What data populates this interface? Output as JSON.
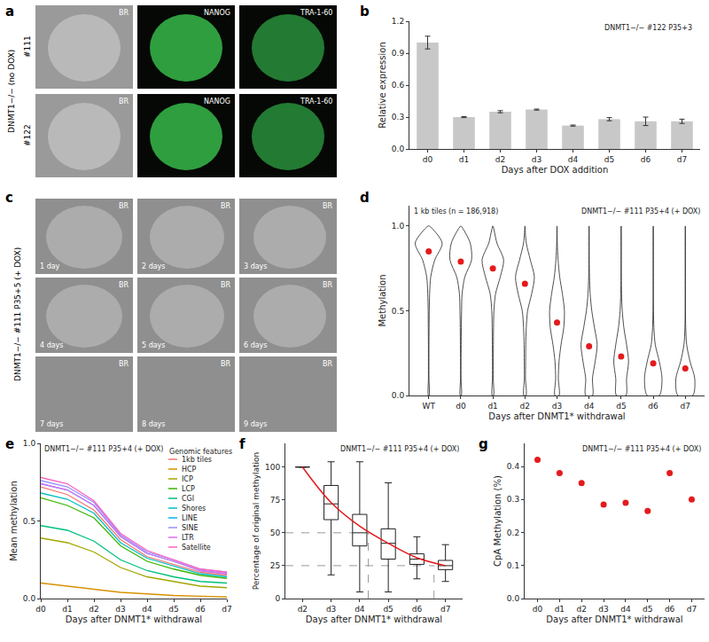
{
  "chart_data": [
    {
      "panel": "a",
      "type": "image",
      "side_label": "DNMT1−/− (no DOX)",
      "row_labels": [
        "#111",
        "#122"
      ],
      "columns": [
        "BR",
        "NANOG",
        "TRA-1-60"
      ]
    },
    {
      "panel": "b",
      "type": "bar",
      "annotation": "DNMT1−/− #122 P35+3",
      "categories": [
        "d0",
        "d1",
        "d2",
        "d3",
        "d4",
        "d5",
        "d6",
        "d7"
      ],
      "values": [
        1.0,
        0.3,
        0.35,
        0.37,
        0.22,
        0.28,
        0.26,
        0.26
      ],
      "errors": [
        0.06,
        0.005,
        0.01,
        0.005,
        0.005,
        0.015,
        0.04,
        0.02
      ],
      "color": "#c8c8c8",
      "x_label": "Days after DOX addition",
      "y_label": "Relative expression",
      "ylim": [
        0,
        1.2
      ],
      "yticks": [
        {
          "value": 0,
          "label": "0.0"
        },
        {
          "value": 0.3,
          "label": "0.3"
        },
        {
          "value": 0.6,
          "label": "0.6"
        },
        {
          "value": 0.9,
          "label": "0.9"
        },
        {
          "value": 1.2,
          "label": "1.2"
        }
      ]
    },
    {
      "panel": "c",
      "type": "image",
      "side_label": "DNMT1−/− #111 P35+5 (+ DOX)",
      "images": [
        {
          "channel": "BR",
          "label": "1 day"
        },
        {
          "channel": "BR",
          "label": "2 days"
        },
        {
          "channel": "BR",
          "label": "3 days"
        },
        {
          "channel": "BR",
          "label": "4 days"
        },
        {
          "channel": "BR",
          "label": "5 days"
        },
        {
          "channel": "BR",
          "label": "6 days"
        },
        {
          "channel": "BR",
          "label": "7 days"
        },
        {
          "channel": "BR",
          "label": "8 days"
        },
        {
          "channel": "BR",
          "label": "9 days"
        }
      ]
    },
    {
      "panel": "d",
      "type": "violin",
      "annotations": [
        "1 kb tiles (n = 186,918)",
        "DNMT1−/− #111 P35+4 (+ DOX)"
      ],
      "categories": [
        "WT",
        "d0",
        "d1",
        "d2",
        "d3",
        "d4",
        "d5",
        "d6",
        "d7"
      ],
      "means": [
        0.85,
        0.79,
        0.75,
        0.66,
        0.43,
        0.29,
        0.23,
        0.19,
        0.16
      ],
      "mean_color": "#e41a1c",
      "density_y": [
        0,
        0.1,
        0.2,
        0.3,
        0.4,
        0.5,
        0.6,
        0.7,
        0.8,
        0.9,
        1.0
      ],
      "densities": [
        [
          0.03,
          0.02,
          0.02,
          0.02,
          0.03,
          0.04,
          0.07,
          0.15,
          0.45,
          1.0,
          0.05
        ],
        [
          0.04,
          0.02,
          0.02,
          0.03,
          0.04,
          0.06,
          0.1,
          0.3,
          0.8,
          0.7,
          0.02
        ],
        [
          0.05,
          0.03,
          0.03,
          0.04,
          0.05,
          0.08,
          0.2,
          0.55,
          0.8,
          0.3,
          0.01
        ],
        [
          0.08,
          0.04,
          0.05,
          0.06,
          0.1,
          0.2,
          0.5,
          0.7,
          0.4,
          0.1,
          0.0
        ],
        [
          0.15,
          0.1,
          0.15,
          0.3,
          0.5,
          0.55,
          0.4,
          0.2,
          0.08,
          0.02,
          0.0
        ],
        [
          0.25,
          0.25,
          0.45,
          0.6,
          0.4,
          0.2,
          0.08,
          0.03,
          0.01,
          0.0,
          0.0
        ],
        [
          0.35,
          0.4,
          0.55,
          0.4,
          0.2,
          0.08,
          0.03,
          0.01,
          0.0,
          0.0,
          0.0
        ],
        [
          0.45,
          0.65,
          0.45,
          0.15,
          0.05,
          0.02,
          0.005,
          0.0,
          0.0,
          0.0,
          0.0
        ],
        [
          0.55,
          0.7,
          0.35,
          0.1,
          0.03,
          0.01,
          0.005,
          0.0,
          0.0,
          0.0,
          0.0
        ]
      ],
      "x_label": "Days after DNMT1* withdrawal",
      "y_label": "Methylation",
      "ylim": [
        0,
        1.12
      ],
      "yticks": [
        {
          "value": 0,
          "label": "0.0"
        },
        {
          "value": 0.5,
          "label": "0.5"
        },
        {
          "value": 1.0,
          "label": "1.0"
        }
      ]
    },
    {
      "panel": "e",
      "type": "line",
      "annotation": "DNMT1−/− #111 P35+4 (+ DOX)",
      "legend_title": "Genomic features",
      "legend": "upper right",
      "categories": [
        "d0",
        "d1",
        "d2",
        "d3",
        "d4",
        "d5",
        "d6",
        "d7"
      ],
      "series": [
        {
          "name": "1kb tiles",
          "color": "#F8766D",
          "values": [
            0.72,
            0.67,
            0.57,
            0.38,
            0.27,
            0.22,
            0.17,
            0.15
          ]
        },
        {
          "name": "HCP",
          "color": "#D89000",
          "values": [
            0.1,
            0.08,
            0.06,
            0.04,
            0.03,
            0.02,
            0.015,
            0.01
          ]
        },
        {
          "name": "ICP",
          "color": "#A3A500",
          "values": [
            0.39,
            0.36,
            0.3,
            0.2,
            0.14,
            0.11,
            0.08,
            0.07
          ]
        },
        {
          "name": "LCP",
          "color": "#39B600",
          "values": [
            0.65,
            0.6,
            0.52,
            0.34,
            0.24,
            0.19,
            0.15,
            0.13
          ]
        },
        {
          "name": "CGI",
          "color": "#00BF7D",
          "values": [
            0.47,
            0.44,
            0.37,
            0.25,
            0.18,
            0.14,
            0.11,
            0.1
          ]
        },
        {
          "name": "Shores",
          "color": "#00BFC4",
          "values": [
            0.68,
            0.64,
            0.55,
            0.36,
            0.26,
            0.21,
            0.16,
            0.14
          ]
        },
        {
          "name": "LINE",
          "color": "#00B0F6",
          "values": [
            0.74,
            0.7,
            0.6,
            0.4,
            0.29,
            0.24,
            0.18,
            0.16
          ]
        },
        {
          "name": "SINE",
          "color": "#9590FF",
          "values": [
            0.76,
            0.72,
            0.62,
            0.41,
            0.3,
            0.25,
            0.19,
            0.17
          ]
        },
        {
          "name": "LTR",
          "color": "#E76BF3",
          "values": [
            0.74,
            0.7,
            0.6,
            0.4,
            0.29,
            0.24,
            0.18,
            0.16
          ]
        },
        {
          "name": "Satellite",
          "color": "#FF62BC",
          "values": [
            0.78,
            0.74,
            0.63,
            0.42,
            0.31,
            0.25,
            0.19,
            0.17
          ]
        }
      ],
      "x_label": "Days after DNMT1* withdrawal",
      "y_label": "Mean methylation",
      "ylim": [
        0,
        1.0
      ],
      "yticks": [
        {
          "value": 0,
          "label": "0.0"
        },
        {
          "value": 0.5,
          "label": "0.5"
        },
        {
          "value": 1.0,
          "label": "1.0"
        }
      ]
    },
    {
      "panel": "f",
      "type": "box",
      "annotation": "DNMT1−/− #111 P35+4 (+ DOX)",
      "x": [
        2,
        3,
        4,
        5,
        6,
        7
      ],
      "q1": [
        100,
        60,
        40,
        30,
        26,
        22
      ],
      "median": [
        100,
        72,
        50,
        42,
        30,
        25
      ],
      "q3": [
        100,
        86,
        64,
        53,
        34,
        29
      ],
      "lower": [
        100,
        18,
        5,
        5,
        15,
        13
      ],
      "upper": [
        100,
        104,
        104,
        88,
        47,
        41
      ],
      "trend": {
        "color": "#e41a1c",
        "values": [
          100,
          73,
          55,
          42,
          31,
          25
        ]
      },
      "reference_lines": [
        {
          "x": 4.3,
          "y": 50
        },
        {
          "x": 6.6,
          "y": 25
        }
      ],
      "x_label": "Days after DNMT1* withdrawal",
      "y_label": "Percentage of original methylation",
      "xlim": [
        1.4,
        7.6
      ],
      "xticks": [
        {
          "value": 2,
          "label": "d2"
        },
        {
          "value": 3,
          "label": "d3"
        },
        {
          "value": 4,
          "label": "d4"
        },
        {
          "value": 5,
          "label": "d5"
        },
        {
          "value": 6,
          "label": "d6"
        },
        {
          "value": 7,
          "label": "d7"
        }
      ],
      "ylim": [
        0,
        118
      ],
      "yticks": [
        0,
        25,
        50,
        75,
        100
      ]
    },
    {
      "panel": "g",
      "type": "scatter",
      "annotation": "DNMT1−/− #111 P35+4 (+ DOX)",
      "categories": [
        "d0",
        "d1",
        "d2",
        "d3",
        "d4",
        "d5",
        "d6",
        "d7"
      ],
      "values": [
        0.42,
        0.38,
        0.35,
        0.285,
        0.29,
        0.265,
        0.38,
        0.3
      ],
      "color": "#e41a1c",
      "x_label": "Days after DNMT1* withdrawal",
      "y_label": "CpA Methylation (%)",
      "ylim": [
        0,
        0.47
      ],
      "yticks": [
        {
          "value": 0,
          "label": "0.0"
        },
        {
          "value": 0.1,
          "label": "0.1"
        },
        {
          "value": 0.2,
          "label": "0.2"
        },
        {
          "value": 0.3,
          "label": "0.3"
        },
        {
          "value": 0.4,
          "label": "0.4"
        }
      ]
    }
  ]
}
